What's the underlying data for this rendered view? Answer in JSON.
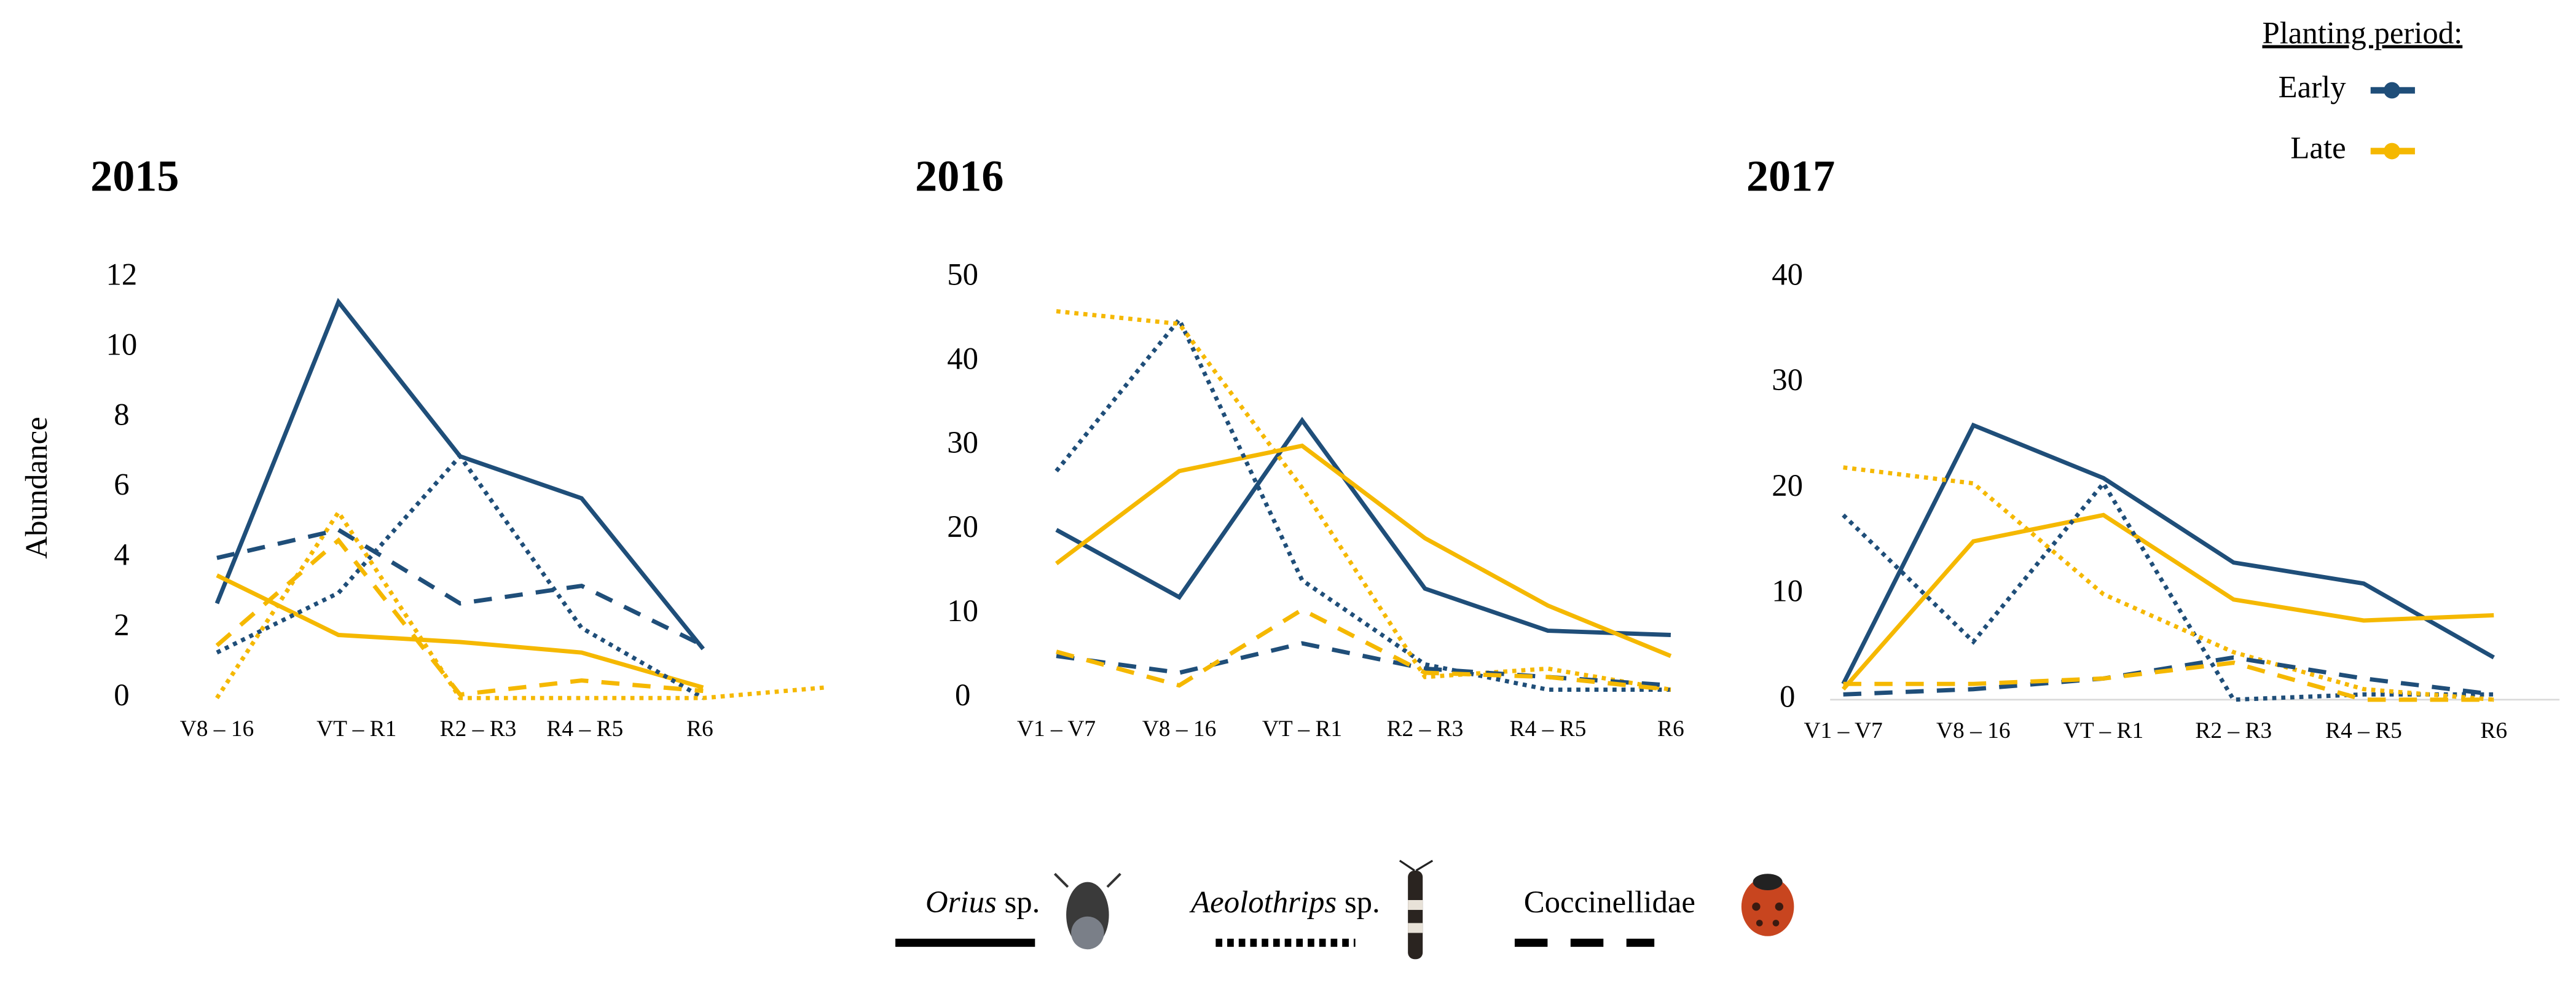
{
  "chart_data": [
    {
      "type": "line",
      "title": "2015",
      "ylabel": "Abundance",
      "categories": [
        "V8 – 16",
        "VT – R1",
        "R2 – R3",
        "R4 – R5",
        "R6",
        null
      ],
      "ylim": [
        0,
        12
      ],
      "yticks": [
        0,
        2,
        4,
        6,
        8,
        10,
        12
      ],
      "series": [
        {
          "taxon": "Orius",
          "period": "Early",
          "values": [
            2.7,
            11.3,
            6.9,
            5.7,
            1.4,
            null
          ]
        },
        {
          "taxon": "Orius",
          "period": "Late",
          "values": [
            3.5,
            1.8,
            1.6,
            1.3,
            0.3,
            null
          ]
        },
        {
          "taxon": "Aeolothrips",
          "period": "Early",
          "values": [
            1.3,
            3.0,
            6.9,
            2.0,
            0,
            null
          ]
        },
        {
          "taxon": "Aeolothrips",
          "period": "Late",
          "values": [
            0,
            5.3,
            0,
            0,
            0,
            0.3
          ]
        },
        {
          "taxon": "Coccinellidae",
          "period": "Early",
          "values": [
            4.0,
            4.8,
            2.7,
            3.2,
            1.5,
            null
          ]
        },
        {
          "taxon": "Coccinellidae",
          "period": "Late",
          "values": [
            1.5,
            4.5,
            0.1,
            0.5,
            0.2,
            null
          ]
        }
      ]
    },
    {
      "type": "line",
      "title": "2016",
      "categories": [
        "V1 – V7",
        "V8 – 16",
        "VT – R1",
        "R2 – R3",
        "R4 – R5",
        "R6"
      ],
      "ylim": [
        0,
        50
      ],
      "yticks": [
        0,
        10,
        20,
        30,
        40,
        50
      ],
      "series": [
        {
          "taxon": "Orius",
          "period": "Early",
          "values": [
            20,
            12,
            33,
            13,
            8,
            7.5
          ]
        },
        {
          "taxon": "Orius",
          "period": "Late",
          "values": [
            16,
            27,
            30,
            19,
            11,
            5
          ]
        },
        {
          "taxon": "Aeolothrips",
          "period": "Early",
          "values": [
            27,
            45,
            14,
            4,
            1,
            1
          ]
        },
        {
          "taxon": "Aeolothrips",
          "period": "Late",
          "values": [
            46,
            44.5,
            25,
            2.5,
            3.5,
            1
          ]
        },
        {
          "taxon": "Coccinellidae",
          "period": "Early",
          "values": [
            5,
            3,
            6.5,
            3.5,
            2.5,
            1.5
          ]
        },
        {
          "taxon": "Coccinellidae",
          "period": "Late",
          "values": [
            5.5,
            1.5,
            10.5,
            3,
            2.5,
            1
          ]
        }
      ]
    },
    {
      "type": "line",
      "title": "2017",
      "categories": [
        "V1 – V7",
        "V8 – 16",
        "VT – R1",
        "R2 – R3",
        "R4 – R5",
        "R6"
      ],
      "ylim": [
        0,
        40
      ],
      "yticks": [
        0,
        10,
        20,
        30,
        40
      ],
      "series": [
        {
          "taxon": "Orius",
          "period": "Early",
          "values": [
            1.5,
            26,
            21,
            13,
            11,
            4
          ]
        },
        {
          "taxon": "Orius",
          "period": "Late",
          "values": [
            1,
            15,
            17.5,
            9.5,
            7.5,
            8
          ]
        },
        {
          "taxon": "Aeolothrips",
          "period": "Early",
          "values": [
            17.5,
            5.5,
            20.5,
            0,
            0.5,
            0.5
          ]
        },
        {
          "taxon": "Aeolothrips",
          "period": "Late",
          "values": [
            22,
            20.5,
            10,
            4.5,
            1,
            0
          ]
        },
        {
          "taxon": "Coccinellidae",
          "period": "Early",
          "values": [
            0.5,
            1,
            2,
            4,
            2,
            0.5
          ]
        },
        {
          "taxon": "Coccinellidae",
          "period": "Late",
          "values": [
            1.5,
            1.5,
            2,
            3.5,
            0,
            0
          ]
        }
      ]
    }
  ],
  "legend": {
    "title": "Planting period:",
    "periods": [
      {
        "name": "Early",
        "color": "#1f4e79"
      },
      {
        "name": "Late",
        "color": "#f5b800"
      }
    ],
    "taxa": [
      {
        "name": "Orius",
        "suffix": "sp.",
        "style": "solid"
      },
      {
        "name": "Aeolothrips",
        "suffix": "sp.",
        "style": "dotted"
      },
      {
        "name": "Coccinellidae",
        "style": "dashed"
      }
    ]
  }
}
